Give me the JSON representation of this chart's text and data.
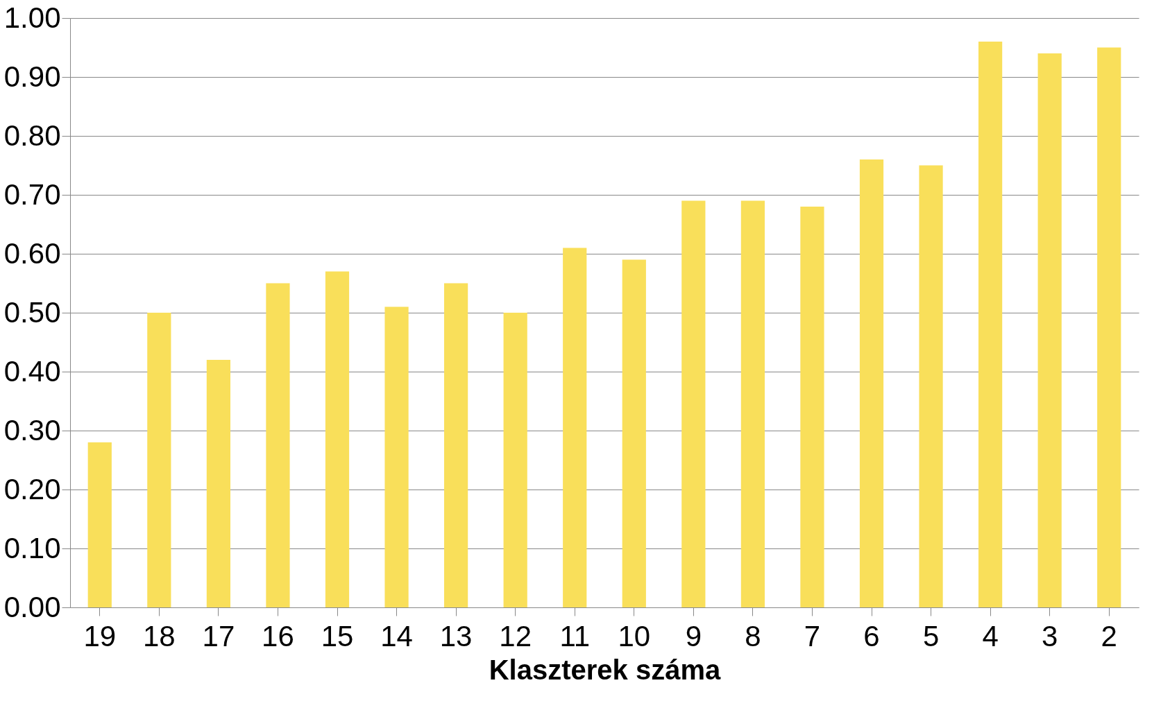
{
  "chart_data": {
    "type": "bar",
    "xlabel": "Klaszterek száma",
    "categories": [
      "19",
      "18",
      "17",
      "16",
      "15",
      "14",
      "13",
      "12",
      "11",
      "10",
      "9",
      "8",
      "7",
      "6",
      "5",
      "4",
      "3",
      "2"
    ],
    "values": [
      0.28,
      0.5,
      0.42,
      0.55,
      0.57,
      0.51,
      0.55,
      0.5,
      0.61,
      0.59,
      0.69,
      0.69,
      0.68,
      0.76,
      0.75,
      0.96,
      0.94,
      0.95
    ],
    "color": "#f9df5a",
    "ylim": [
      0,
      1
    ],
    "yticks": [
      {
        "value": 0,
        "label": "0.00"
      },
      {
        "value": 0.1,
        "label": "0.10"
      },
      {
        "value": 0.2,
        "label": "0.20"
      },
      {
        "value": 0.3,
        "label": "0.30"
      },
      {
        "value": 0.4,
        "label": "0.40"
      },
      {
        "value": 0.5,
        "label": "0.50"
      },
      {
        "value": 0.6,
        "label": "0.60"
      },
      {
        "value": 0.7,
        "label": "0.70"
      },
      {
        "value": 0.8,
        "label": "0.80"
      },
      {
        "value": 0.9,
        "label": "0.90"
      },
      {
        "value": 1,
        "label": "1.00"
      }
    ],
    "grid": "y"
  }
}
